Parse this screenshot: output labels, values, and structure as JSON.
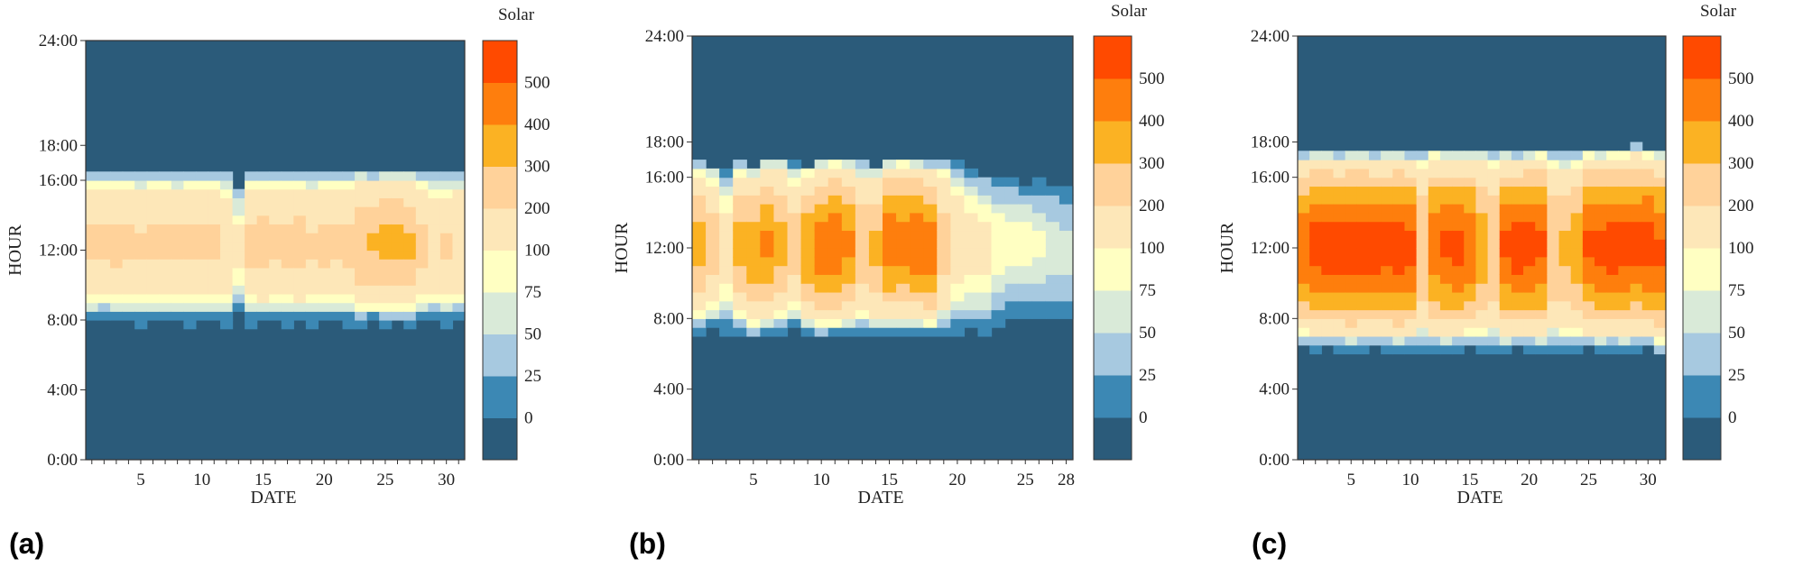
{
  "figure": {
    "panel_letters": [
      "(a)",
      "(b)",
      "(c)"
    ]
  },
  "colors": {
    "levels": [
      "#2b5b7a",
      "#3c88b4",
      "#a7c9e0",
      "#d9ead8",
      "#ffffc2",
      "#fde7b8",
      "#ffd29a",
      "#fbb223",
      "#fe7e0d",
      "#ff4a00"
    ],
    "frame": "#333333"
  },
  "chart_data": [
    {
      "type": "heatmap",
      "panel": "(a)",
      "xlabel": "DATE",
      "ylabel": "HOUR",
      "colorbar_title": "Solar",
      "x_ticks": [
        "5",
        "10",
        "15",
        "20",
        "25",
        "30"
      ],
      "y_ticks": [
        "0:00",
        "4:00",
        "8:00",
        "12:00",
        "16:00",
        "18:00",
        "24:00"
      ],
      "colorbar_labels": [
        "0",
        "25",
        "50",
        "75",
        "100",
        "200",
        "300",
        "400",
        "500"
      ],
      "xlim": [
        1,
        31
      ],
      "ylim_hours": [
        0,
        24
      ],
      "daylight_start": [
        "7:50",
        "7:55",
        "7:55",
        "7:50",
        "7:45",
        "7:50",
        "7:55",
        "7:50",
        "7:45",
        "7:50",
        "7:50",
        "7:45",
        "8:20",
        "7:45",
        "7:50",
        "7:50",
        "7:45",
        "7:50",
        "7:45",
        "7:50",
        "7:50",
        "7:45",
        "7:45",
        "7:50",
        "7:45",
        "7:50",
        "7:45",
        "7:50",
        "7:50",
        "7:45",
        "7:50"
      ],
      "daylight_end": [
        "16:40",
        "16:40",
        "16:35",
        "16:40",
        "16:35",
        "16:40",
        "16:40",
        "16:30",
        "16:40",
        "16:35",
        "16:40",
        "16:30",
        "15:40",
        "16:40",
        "16:35",
        "16:40",
        "16:40",
        "16:30",
        "16:35",
        "16:40",
        "16:35",
        "16:40",
        "16:35",
        "16:30",
        "16:40",
        "16:35",
        "16:30",
        "16:40",
        "16:35",
        "16:30",
        "16:40"
      ],
      "daily_peak": [
        220,
        220,
        230,
        220,
        215,
        225,
        230,
        220,
        225,
        220,
        220,
        200,
        120,
        230,
        250,
        220,
        230,
        250,
        215,
        230,
        220,
        230,
        300,
        310,
        330,
        340,
        320,
        230,
        200,
        210,
        200
      ]
    },
    {
      "type": "heatmap",
      "panel": "(b)",
      "xlabel": "DATE",
      "ylabel": "HOUR",
      "colorbar_title": "Solar",
      "x_ticks": [
        "5",
        "10",
        "15",
        "20",
        "25",
        "28"
      ],
      "y_ticks": [
        "0:00",
        "4:00",
        "8:00",
        "12:00",
        "16:00",
        "18:00",
        "24:00"
      ],
      "colorbar_labels": [
        "0",
        "25",
        "50",
        "75",
        "100",
        "200",
        "300",
        "400",
        "500"
      ],
      "xlim": [
        1,
        28
      ],
      "ylim_hours": [
        0,
        24
      ],
      "daylight_start": [
        "7:10",
        "7:20",
        "7:10",
        "7:15",
        "6:50",
        "7:00",
        "7:10",
        "7:20",
        "7:00",
        "6:50",
        "7:00",
        "7:10",
        "7:15",
        "7:00",
        "7:10",
        "7:05",
        "7:10",
        "7:00",
        "7:10",
        "7:15",
        "7:20",
        "7:10",
        "7:40",
        "8:00",
        "8:10",
        "8:00",
        "8:05",
        "8:00"
      ],
      "daylight_end": [
        "17:00",
        "16:40",
        "16:30",
        "16:50",
        "16:40",
        "17:00",
        "17:10",
        "16:50",
        "16:40",
        "17:00",
        "17:10",
        "17:00",
        "16:50",
        "16:40",
        "17:00",
        "17:10",
        "17:00",
        "16:50",
        "17:10",
        "17:00",
        "16:30",
        "16:10",
        "16:00",
        "15:50",
        "15:40",
        "15:50",
        "15:30",
        "15:20"
      ],
      "daily_peak": [
        330,
        260,
        140,
        330,
        370,
        420,
        330,
        240,
        400,
        460,
        470,
        420,
        300,
        330,
        470,
        450,
        480,
        460,
        250,
        150,
        130,
        120,
        100,
        90,
        90,
        80,
        70,
        60
      ]
    },
    {
      "type": "heatmap",
      "panel": "(c)",
      "xlabel": "DATE",
      "ylabel": "HOUR",
      "colorbar_title": "Solar",
      "x_ticks": [
        "5",
        "10",
        "15",
        "20",
        "25",
        "30"
      ],
      "y_ticks": [
        "0:00",
        "4:00",
        "8:00",
        "12:00",
        "16:00",
        "18:00",
        "24:00"
      ],
      "colorbar_labels": [
        "0",
        "25",
        "50",
        "75",
        "100",
        "200",
        "300",
        "400",
        "500"
      ],
      "xlim": [
        1,
        31
      ],
      "ylim_hours": [
        0,
        24
      ],
      "daylight_start": [
        "6:20",
        "6:15",
        "6:20",
        "6:15",
        "6:10",
        "6:15",
        "6:20",
        "6:15",
        "6:10",
        "6:15",
        "6:10",
        "6:15",
        "6:10",
        "6:15",
        "6:20",
        "6:10",
        "6:15",
        "6:10",
        "6:20",
        "6:15",
        "6:10",
        "6:15",
        "6:10",
        "6:15",
        "6:20",
        "6:10",
        "6:15",
        "6:10",
        "6:15",
        "6:20",
        "5:50"
      ],
      "daylight_end": [
        "17:20",
        "17:30",
        "17:30",
        "17:20",
        "17:30",
        "17:30",
        "17:20",
        "17:25",
        "17:30",
        "17:20",
        "17:30",
        "17:40",
        "17:30",
        "17:25",
        "17:30",
        "17:40",
        "17:30",
        "17:30",
        "17:20",
        "17:30",
        "17:35",
        "17:30",
        "17:20",
        "17:30",
        "17:40",
        "17:30",
        "17:35",
        "17:40",
        "17:50",
        "17:40",
        "17:30"
      ],
      "daily_peak": [
        480,
        550,
        560,
        560,
        570,
        570,
        560,
        550,
        560,
        540,
        300,
        480,
        520,
        540,
        500,
        360,
        300,
        520,
        560,
        550,
        520,
        300,
        320,
        360,
        520,
        540,
        560,
        550,
        540,
        560,
        520
      ]
    }
  ]
}
